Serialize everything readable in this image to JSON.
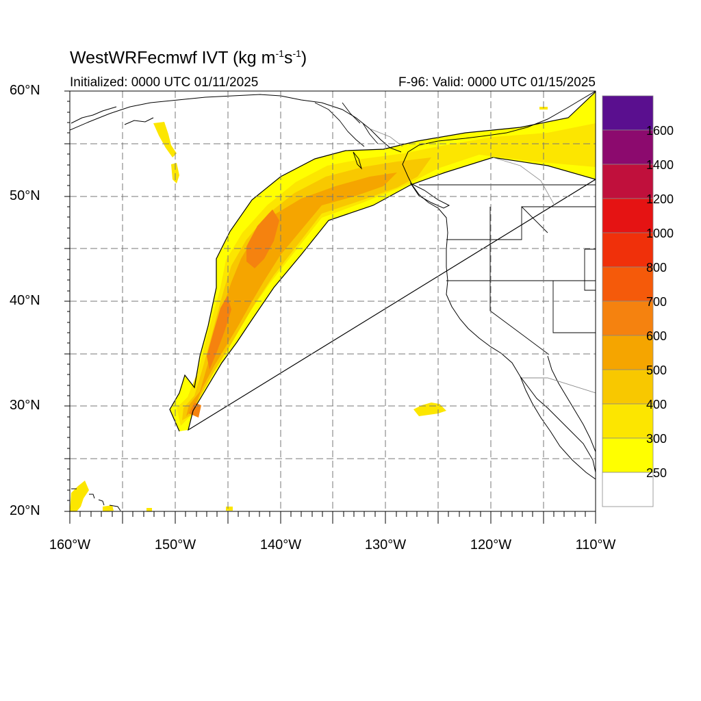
{
  "title": {
    "main": "WestWRFecmwf IVT (kg m",
    "sup1": "-1",
    "mid": "s",
    "sup2": "-1",
    "end": ")"
  },
  "subtitle_left": "Initialized: 0000 UTC 01/11/2025",
  "subtitle_right": "F-96: Valid: 0000 UTC 01/15/2025",
  "map": {
    "projection": "equirectangular",
    "lon_range": [
      -160,
      -110
    ],
    "lat_range": [
      20,
      60
    ],
    "gridlines": "dashed",
    "grid_spacing_deg": 5,
    "lat_labels": [
      "60°N",
      "50°N",
      "40°N",
      "30°N",
      "20°N"
    ],
    "lon_labels": [
      "160°W",
      "150°W",
      "140°W",
      "130°W",
      "120°W",
      "110°W"
    ]
  },
  "colorbar": {
    "placement": "right",
    "labels": [
      "1600",
      "1400",
      "1200",
      "1000",
      "800",
      "700",
      "600",
      "500",
      "400",
      "300",
      "250"
    ],
    "colors_top_to_bottom": [
      "#5a0f8f",
      "#8c0a6e",
      "#c0103c",
      "#e51313",
      "#f0300a",
      "#f55a0a",
      "#f5820f",
      "#f5a500",
      "#f8c800",
      "#fce600",
      "#ffff00",
      "#ffffff"
    ]
  },
  "ivt_color_scale": {
    "250-300": "#ffff00",
    "300-400": "#fce600",
    "400-500": "#f8c800",
    "500-600": "#f5a500",
    "600-700": "#f5820f"
  }
}
